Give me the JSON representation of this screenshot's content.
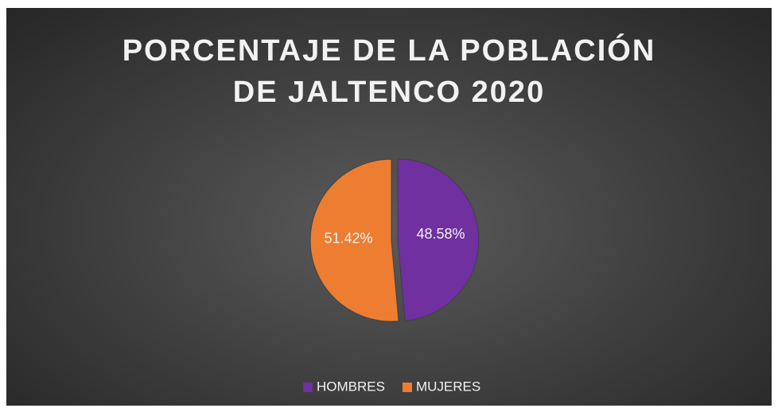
{
  "chart_data": {
    "type": "pie",
    "title": "PORCENTAJE DE LA POBLACIÓN DE JALTENCO 2020",
    "categories": [
      "HOMBRES",
      "MUJERES"
    ],
    "values": [
      48.58,
      51.42
    ],
    "value_labels": [
      "48.58%",
      "51.42%"
    ],
    "colors": [
      "#7030a0",
      "#ed7d31"
    ],
    "legend": "bottom"
  }
}
